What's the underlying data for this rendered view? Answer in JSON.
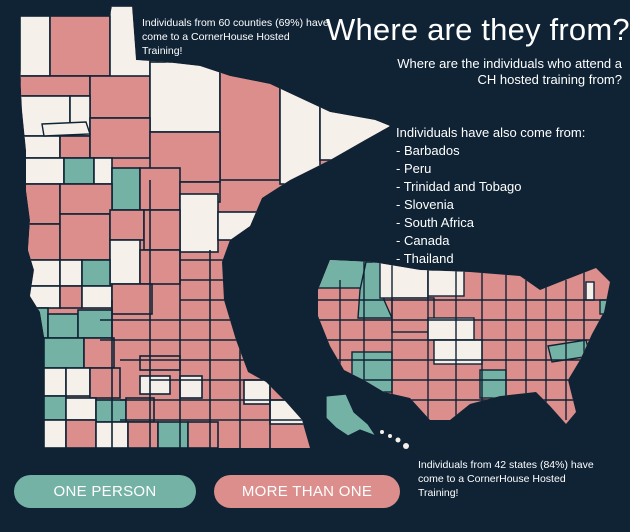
{
  "title": "Where are they from?",
  "subtitle": "Where are the individuals who attend a CH hosted training from?",
  "counties_note": "Individuals from 60 counties (69%) have come to a CornerHouse Hosted Training!",
  "also_heading": "Individuals have also come from:",
  "countries": [
    "- Barbados",
    "- Peru",
    "- Trinidad and Tobago",
    "- Slovenia",
    "- South Africa",
    "- Canada",
    "- Thailand"
  ],
  "states_note": "Individuals from 42 states (84%) have come to a CornerHouse Hosted Training!",
  "legend": {
    "one_person": "ONE PERSON",
    "more_than_one": "MORE THAN ONE"
  },
  "colors": {
    "background": "#0f2335",
    "one_person": "#75b2a6",
    "more_than_one": "#db8e8b",
    "none": "#f5f0ea",
    "border": "#0f2335"
  },
  "stats": {
    "counties": 60,
    "counties_percent": 69,
    "states": 42,
    "states_percent": 84
  }
}
